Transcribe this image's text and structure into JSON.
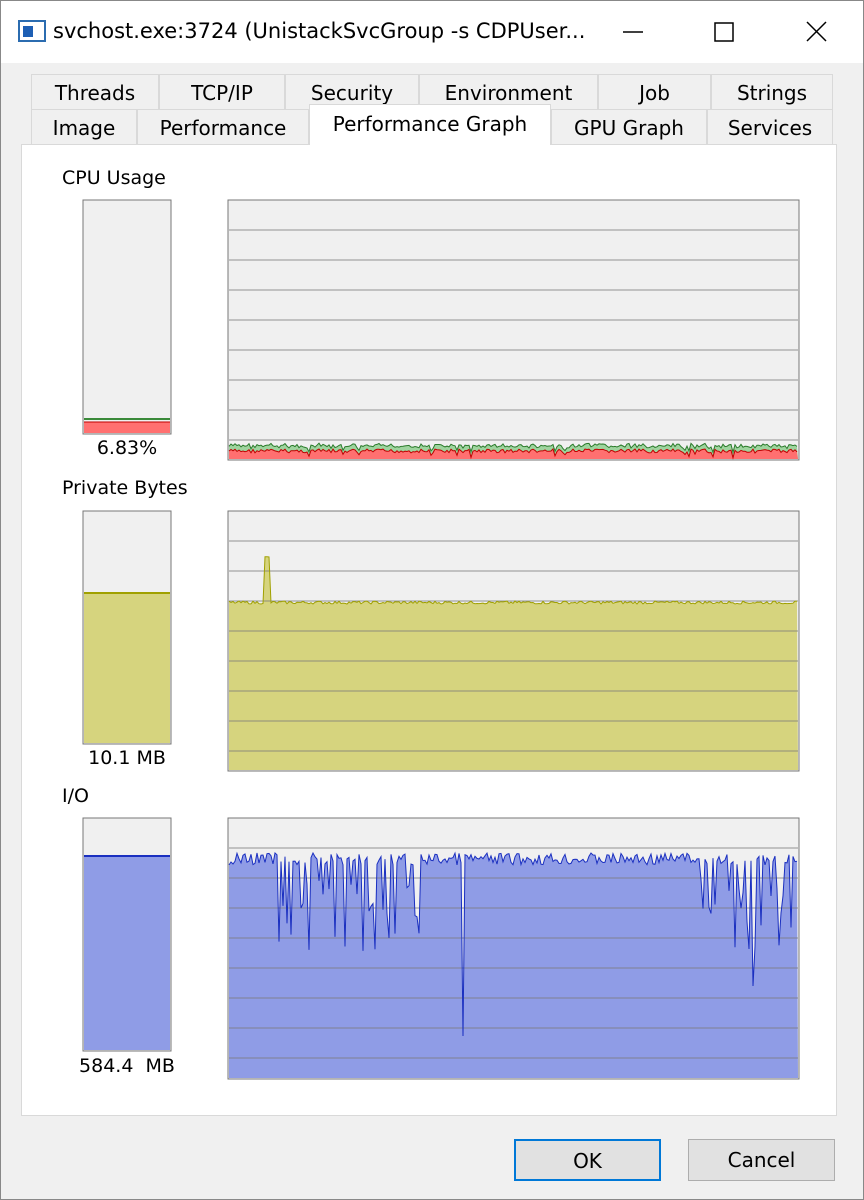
{
  "window": {
    "title": "svchost.exe:3724 (UnistackSvcGroup -s CDPUser..."
  },
  "tabs": {
    "row1": [
      "Threads",
      "TCP/IP",
      "Security",
      "Environment",
      "Job",
      "Strings"
    ],
    "row2": [
      "Image",
      "Performance",
      "Performance Graph",
      "GPU Graph",
      "Services"
    ]
  },
  "sections": [
    {
      "label": "CPU Usage",
      "value": "6.83%"
    },
    {
      "label": "Private Bytes",
      "value": "10.1 MB"
    },
    {
      "label": "I/O",
      "value": "584.4  MB"
    }
  ],
  "buttons": [
    "OK",
    "Cancel"
  ]
}
